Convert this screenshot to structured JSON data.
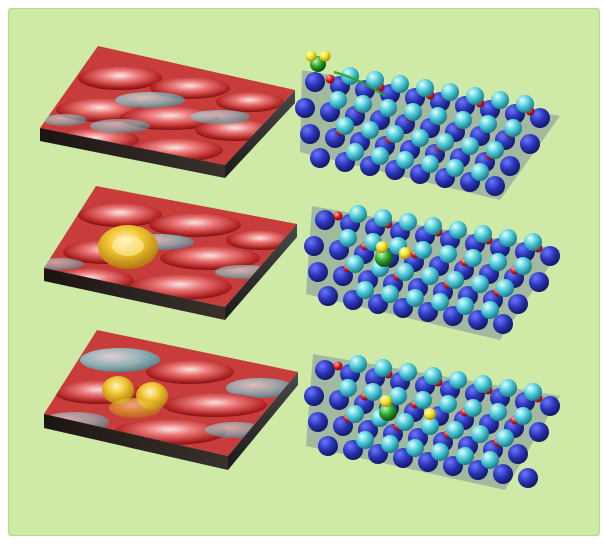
{
  "figure": {
    "background_color": "#cfe9a6",
    "panels": [
      {
        "row": 1,
        "side": "stm",
        "description_icon": "stm-topography",
        "highlight": "none"
      },
      {
        "row": 1,
        "side": "model",
        "description_icon": "atomic-lattice",
        "adsorbate": "approaching-molecule"
      },
      {
        "row": 2,
        "side": "stm",
        "description_icon": "stm-topography",
        "highlight": "single-bright-feature"
      },
      {
        "row": 2,
        "side": "model",
        "description_icon": "atomic-lattice",
        "adsorbate": "adsorbed-molecule"
      },
      {
        "row": 3,
        "side": "stm",
        "description_icon": "stm-topography",
        "highlight": "split-bright-features"
      },
      {
        "row": 3,
        "side": "model",
        "description_icon": "atomic-lattice",
        "adsorbate": "dissociated-molecule"
      }
    ],
    "colors": {
      "lattice_dark": "#2a35b8",
      "lattice_light": "#48c8d8",
      "lattice_red": "#e01818",
      "adsorbate_green": "#2aa02a",
      "adsorbate_yellow": "#f2e21a",
      "stm_red": "#d23a3a",
      "stm_cyan": "#7fd8e0",
      "stm_yellow": "#f4c43a",
      "stm_base": "#2a2420"
    }
  }
}
